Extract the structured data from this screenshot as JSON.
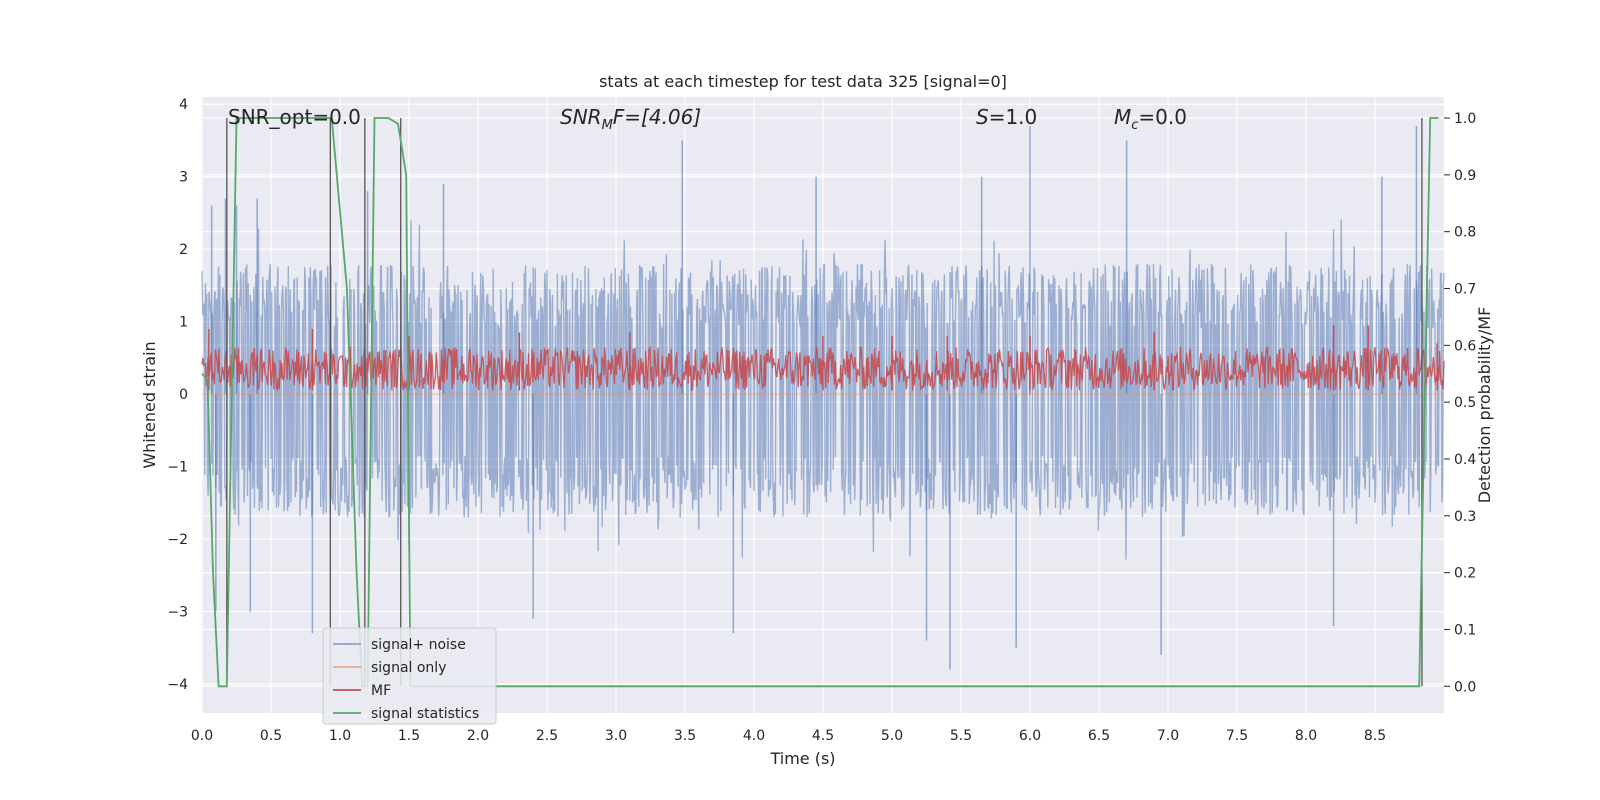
{
  "chart_data": {
    "type": "line",
    "title": "stats at each timestep for test data 325 [signal=0]",
    "xlabel": "Time (s)",
    "ylabel": "Whitened strain",
    "y2label": "Detection probability/MF",
    "xlim": [
      0.0,
      9.0
    ],
    "ylim": [
      -4.4,
      4.1
    ],
    "y2lim": [
      -0.047,
      1.037
    ],
    "xticks": [
      "0.0",
      "0.5",
      "1.0",
      "1.5",
      "2.0",
      "2.5",
      "3.0",
      "3.5",
      "4.0",
      "4.5",
      "5.0",
      "5.5",
      "6.0",
      "6.5",
      "7.0",
      "7.5",
      "8.0",
      "8.5"
    ],
    "yticks": [
      "4",
      "3",
      "2",
      "1",
      "0",
      "−1",
      "−2",
      "−3",
      "−4"
    ],
    "y2ticks": [
      "1.0",
      "0.9",
      "0.8",
      "0.7",
      "0.6",
      "0.5",
      "0.4",
      "0.3",
      "0.2",
      "0.1",
      "0.0"
    ],
    "grid": true,
    "legend_position": "lower-left",
    "annotations": {
      "snr_opt": "SNR_opt=0.0",
      "snr_mf_base": "SNR",
      "snr_mf_sub": "M",
      "snr_mf_rest": "F=[4.06]",
      "s_base": "S",
      "s_rest": "=1.0",
      "mc_base": "M",
      "mc_sub": "c",
      "mc_rest": "=0.0"
    },
    "series": [
      {
        "name": "signal+ noise",
        "color": "#4c72b0",
        "axis": "left",
        "envelope_typical": [
          -1.7,
          1.8
        ],
        "spikes": [
          {
            "x": 0.07,
            "y": 2.6
          },
          {
            "x": 0.17,
            "y": 2.7
          },
          {
            "x": 0.25,
            "y": 2.6
          },
          {
            "x": 0.4,
            "y": 2.7
          },
          {
            "x": 1.2,
            "y": 2.8
          },
          {
            "x": 1.75,
            "y": 2.9
          },
          {
            "x": 3.48,
            "y": 3.5
          },
          {
            "x": 4.45,
            "y": 3.0
          },
          {
            "x": 5.65,
            "y": 3.0
          },
          {
            "x": 6.0,
            "y": 3.7
          },
          {
            "x": 6.7,
            "y": 3.5
          },
          {
            "x": 8.55,
            "y": 3.0
          },
          {
            "x": 8.8,
            "y": 3.7
          },
          {
            "x": 0.1,
            "y": -3.0
          },
          {
            "x": 0.35,
            "y": -3.0
          },
          {
            "x": 0.8,
            "y": -3.3
          },
          {
            "x": 2.4,
            "y": -3.1
          },
          {
            "x": 3.85,
            "y": -3.3
          },
          {
            "x": 5.25,
            "y": -3.4
          },
          {
            "x": 5.42,
            "y": -3.8
          },
          {
            "x": 5.9,
            "y": -3.5
          },
          {
            "x": 6.95,
            "y": -3.6
          },
          {
            "x": 8.2,
            "y": -3.2
          }
        ]
      },
      {
        "name": "signal only",
        "color": "#dd8452",
        "axis": "left",
        "values": [
          0.0
        ]
      },
      {
        "name": "MF",
        "color": "#c44e52",
        "axis": "left",
        "band": [
          0.05,
          0.65
        ],
        "peaks": [
          {
            "x": 0.05,
            "y": 0.9
          },
          {
            "x": 0.8,
            "y": 0.9
          },
          {
            "x": 1.5,
            "y": 0.8
          },
          {
            "x": 2.3,
            "y": 0.85
          },
          {
            "x": 3.1,
            "y": 0.85
          },
          {
            "x": 4.5,
            "y": 0.8
          },
          {
            "x": 5.0,
            "y": 0.8
          },
          {
            "x": 5.4,
            "y": 0.8
          },
          {
            "x": 6.0,
            "y": 0.8
          },
          {
            "x": 6.9,
            "y": 0.85
          },
          {
            "x": 8.2,
            "y": 0.95
          },
          {
            "x": 8.45,
            "y": 0.95
          },
          {
            "x": 8.95,
            "y": 0.7
          }
        ]
      },
      {
        "name": "signal statistics",
        "color": "#55a868",
        "axis": "right",
        "points": [
          [
            0.0,
            0.55
          ],
          [
            0.04,
            0.54
          ],
          [
            0.08,
            0.2
          ],
          [
            0.12,
            0.0
          ],
          [
            0.18,
            0.0
          ],
          [
            0.25,
            1.0
          ],
          [
            0.3,
            1.0
          ],
          [
            0.94,
            1.0
          ],
          [
            1.05,
            0.7
          ],
          [
            1.12,
            0.2
          ],
          [
            1.16,
            0.0
          ],
          [
            1.2,
            0.0
          ],
          [
            1.25,
            1.0
          ],
          [
            1.35,
            1.0
          ],
          [
            1.42,
            0.99
          ],
          [
            1.48,
            0.9
          ],
          [
            1.51,
            0.0
          ],
          [
            8.82,
            0.0
          ],
          [
            8.9,
            1.0
          ],
          [
            8.96,
            1.0
          ]
        ]
      }
    ],
    "vertical_markers": [
      {
        "x": 0.18,
        "color": "#555555"
      },
      {
        "x": 0.93,
        "color": "#555555"
      },
      {
        "x": 1.18,
        "color": "#555555"
      },
      {
        "x": 1.44,
        "color": "#555555"
      },
      {
        "x": 8.84,
        "color": "#555555"
      }
    ]
  }
}
